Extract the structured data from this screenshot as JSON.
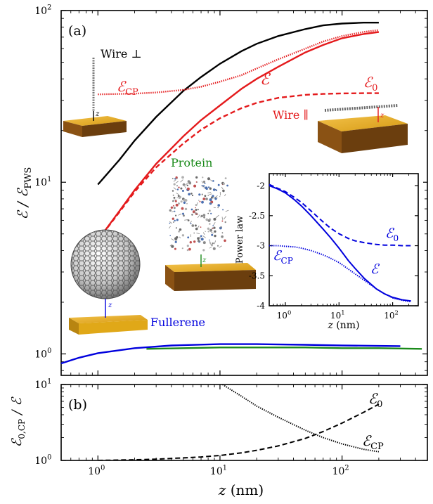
{
  "chart_data": [
    {
      "type": "line",
      "panel_label": "(a)",
      "xscale": "log",
      "yscale": "log",
      "xlim": [
        0.5,
        500
      ],
      "ylim": [
        0.75,
        100
      ],
      "ylabel_main": "ℰ / ℰ",
      "ylabel_sub": "PWS",
      "yticks": [
        {
          "v": 1,
          "label": "10",
          "exp": "0"
        },
        {
          "v": 10,
          "label": "10",
          "exp": "1"
        },
        {
          "v": 100,
          "label": "10",
          "exp": "2"
        }
      ],
      "xticks": [
        {
          "v": 1,
          "label": "10",
          "exp": "0"
        },
        {
          "v": 10,
          "label": "10",
          "exp": "1"
        },
        {
          "v": 100,
          "label": "10",
          "exp": "2"
        }
      ],
      "series": [
        {
          "id": "wire-perp",
          "color": "#000000",
          "dash": "solid",
          "x": [
            1,
            1.5,
            2,
            3,
            5,
            7,
            10,
            15,
            20,
            30,
            50,
            70,
            100,
            150,
            200
          ],
          "y": [
            9.7,
            13.5,
            17.5,
            24,
            34,
            41,
            49,
            58,
            64,
            71,
            78,
            82,
            84,
            85,
            85
          ]
        },
        {
          "id": "wire-par-E",
          "color": "#e41a1c",
          "dash": "solid",
          "x": [
            1,
            1.5,
            2,
            3,
            5,
            7,
            10,
            15,
            20,
            30,
            50,
            70,
            100,
            150,
            200
          ],
          "y": [
            4.6,
            6.8,
            9.0,
            12.8,
            18.5,
            23,
            28,
            35,
            40,
            47,
            57,
            63,
            69,
            73,
            75
          ]
        },
        {
          "id": "wire-par-E0",
          "color": "#e41a1c",
          "dash": "dashed",
          "x": [
            1,
            1.5,
            2,
            3,
            5,
            7,
            10,
            15,
            20,
            30,
            50,
            70,
            100,
            150,
            200
          ],
          "y": [
            4.6,
            6.7,
            8.8,
            12.2,
            16.8,
            20.2,
            23.6,
            27,
            29,
            31,
            32.3,
            32.7,
            32.9,
            33,
            33
          ]
        },
        {
          "id": "wire-par-ECP",
          "color": "#e41a1c",
          "dash": "dotted",
          "x": [
            1,
            2,
            3,
            5,
            7,
            10,
            15,
            20,
            30,
            50,
            70,
            100,
            150,
            200
          ],
          "y": [
            32.5,
            32.8,
            33.3,
            34.5,
            36,
            38.5,
            42,
            46,
            52,
            60,
            66,
            71,
            75,
            77
          ]
        },
        {
          "id": "fullerene",
          "color": "#0000dd",
          "dash": "solid",
          "x": [
            0.5,
            0.7,
            1,
            2,
            4,
            10,
            20,
            50,
            100,
            300
          ],
          "y": [
            0.88,
            0.95,
            1.01,
            1.08,
            1.12,
            1.14,
            1.14,
            1.13,
            1.12,
            1.11
          ]
        },
        {
          "id": "protein",
          "color": "#1a8a1a",
          "dash": "solid",
          "x": [
            2.5,
            5,
            10,
            20,
            50,
            100,
            200,
            450
          ],
          "y": [
            1.07,
            1.08,
            1.09,
            1.09,
            1.09,
            1.08,
            1.08,
            1.07
          ]
        }
      ],
      "labels": {
        "wire_perp": "Wire ⊥",
        "wire_par": "Wire ∥",
        "protein": "Protein",
        "fullerene": "Fullerene",
        "e_cp_main": "ℰ",
        "e_cp_sub": "CP",
        "e": "ℰ",
        "e0_main": "ℰ",
        "e0_sub": "0",
        "z": "z"
      },
      "colors": {
        "wire_par": "#e41a1c",
        "protein": "#1a8a1a",
        "fullerene": "#0000dd",
        "wire_perp": "#000000",
        "slab_top": "#e6ac1a",
        "slab_side": "#7a4a10"
      }
    },
    {
      "type": "line",
      "panel": "inset",
      "xscale": "log",
      "yscale": "linear",
      "xlim": [
        0.5,
        300
      ],
      "ylim": [
        -4,
        -1.8
      ],
      "ylabel": "Power law",
      "xlabel_var": "z",
      "xlabel_unit": " (nm)",
      "yticks": [
        {
          "v": -2,
          "label": "-2"
        },
        {
          "v": -2.5,
          "label": "-2.5"
        },
        {
          "v": -3,
          "label": "-3"
        },
        {
          "v": -3.5,
          "label": "-3.5"
        },
        {
          "v": -4,
          "label": "-4"
        }
      ],
      "xticks": [
        {
          "v": 1,
          "label": "10",
          "exp": "0"
        },
        {
          "v": 10,
          "label": "10",
          "exp": "1"
        },
        {
          "v": 100,
          "label": "10",
          "exp": "2"
        }
      ],
      "series": [
        {
          "id": "inset-E",
          "color": "#0000dd",
          "dash": "solid",
          "x": [
            0.5,
            0.7,
            1,
            1.5,
            2,
            3,
            5,
            7,
            10,
            15,
            20,
            30,
            50,
            70,
            100,
            150,
            220
          ],
          "y": [
            -2.0,
            -2.05,
            -2.12,
            -2.24,
            -2.34,
            -2.5,
            -2.72,
            -2.87,
            -3.04,
            -3.25,
            -3.38,
            -3.55,
            -3.72,
            -3.8,
            -3.86,
            -3.9,
            -3.92
          ]
        },
        {
          "id": "inset-E0",
          "color": "#0000dd",
          "dash": "dashed",
          "x": [
            0.5,
            0.7,
            1,
            1.5,
            2,
            3,
            5,
            7,
            10,
            15,
            20,
            30,
            50,
            70,
            100,
            150,
            220
          ],
          "y": [
            -1.98,
            -2.04,
            -2.1,
            -2.2,
            -2.28,
            -2.42,
            -2.6,
            -2.71,
            -2.8,
            -2.88,
            -2.92,
            -2.95,
            -2.98,
            -2.99,
            -2.99,
            -3.0,
            -3.0
          ]
        },
        {
          "id": "inset-ECP",
          "color": "#0000dd",
          "dash": "dotted",
          "x": [
            0.5,
            0.7,
            1,
            1.5,
            2,
            3,
            5,
            7,
            10,
            15,
            20,
            30,
            50,
            70,
            100,
            150,
            220
          ],
          "y": [
            -3.0,
            -3.0,
            -3.01,
            -3.02,
            -3.04,
            -3.08,
            -3.15,
            -3.21,
            -3.28,
            -3.39,
            -3.47,
            -3.58,
            -3.72,
            -3.8,
            -3.87,
            -3.91,
            -3.93
          ]
        }
      ],
      "labels": {
        "e0_main": "ℰ",
        "e0_sub": "0",
        "e_cp_main": "ℰ",
        "e_cp_sub": "CP",
        "e": "ℰ"
      }
    },
    {
      "type": "line",
      "panel_label": "(b)",
      "xscale": "log",
      "yscale": "log",
      "xlim": [
        0.5,
        500
      ],
      "ylim": [
        1,
        10
      ],
      "ylabel_main": "ℰ",
      "ylabel_sub": "0,CP",
      "ylabel_tail": " / ℰ",
      "xlabel_var": "z",
      "xlabel_unit": " (nm)",
      "yticks": [
        {
          "v": 1,
          "label": "10",
          "exp": "0"
        },
        {
          "v": 10,
          "label": "10",
          "exp": "1"
        }
      ],
      "xticks": [
        {
          "v": 1,
          "label": "10",
          "exp": "0"
        },
        {
          "v": 10,
          "label": "10",
          "exp": "1"
        },
        {
          "v": 100,
          "label": "10",
          "exp": "2"
        }
      ],
      "series": [
        {
          "id": "ratio-E0",
          "color": "#000000",
          "dash": "dashed",
          "x": [
            1,
            2,
            3,
            5,
            7,
            10,
            15,
            20,
            30,
            50,
            70,
            100,
            150,
            200
          ],
          "y": [
            1.0,
            1.02,
            1.04,
            1.08,
            1.11,
            1.16,
            1.26,
            1.36,
            1.55,
            1.95,
            2.4,
            3.1,
            4.3,
            5.5
          ]
        },
        {
          "id": "ratio-ECP",
          "color": "#000000",
          "dash": "dotted",
          "x": [
            10.5,
            15,
            20,
            30,
            50,
            70,
            100,
            150,
            200
          ],
          "y": [
            10,
            7,
            5.2,
            3.7,
            2.5,
            2.0,
            1.65,
            1.4,
            1.3
          ]
        }
      ],
      "labels": {
        "e0_main": "ℰ",
        "e0_sub": "0",
        "e_cp_main": "ℰ",
        "e_cp_sub": "CP"
      }
    }
  ]
}
